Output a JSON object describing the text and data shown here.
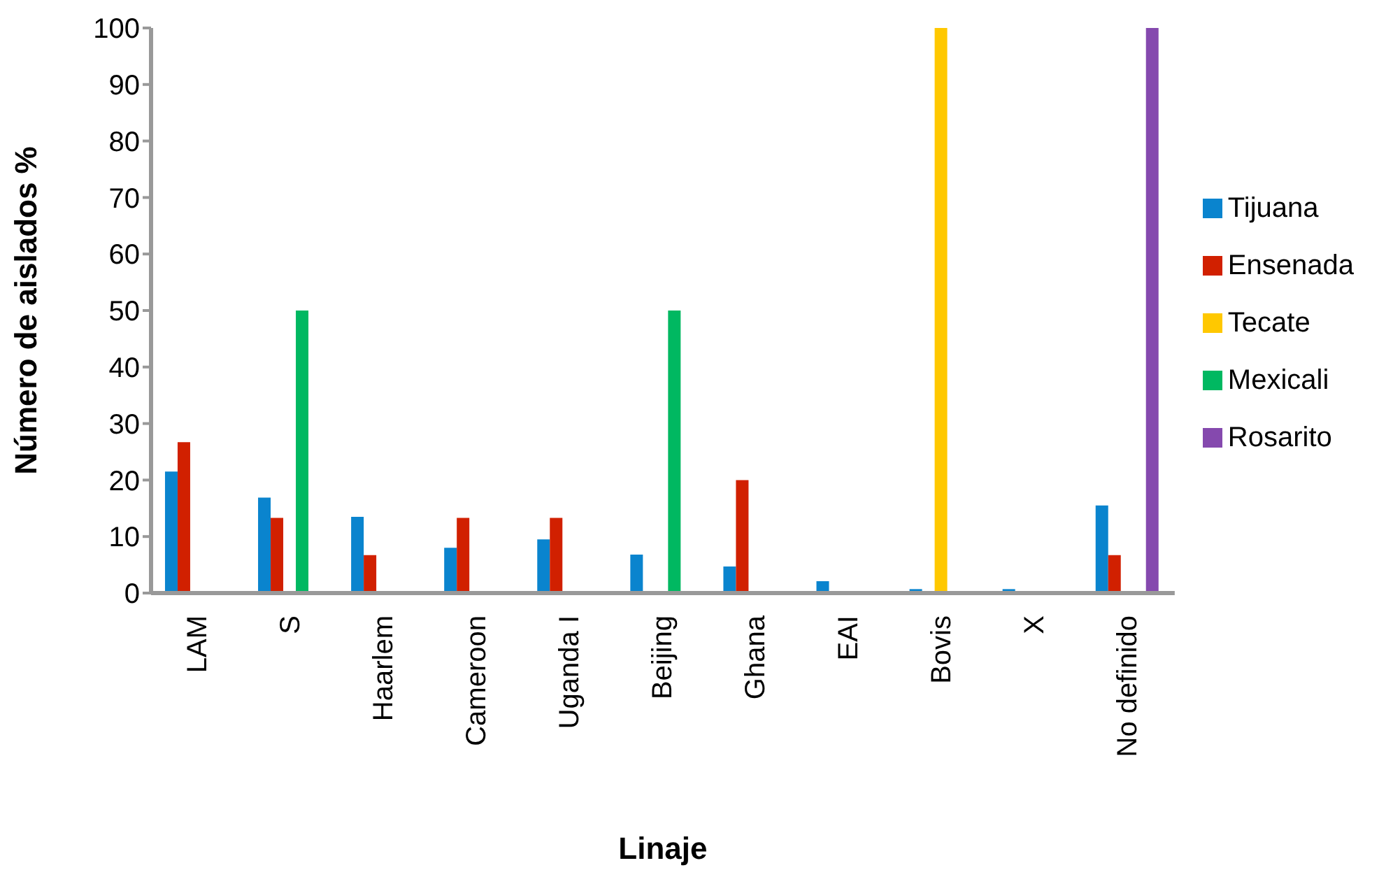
{
  "chart_data": {
    "type": "bar",
    "xlabel": "Linaje",
    "ylabel": "Número de aislados %",
    "categories": [
      "LAM",
      "S",
      "Haarlem",
      "Cameroon",
      "Uganda I",
      "Beijing",
      "Ghana",
      "EAI",
      "Bovis",
      "X",
      "No definido"
    ],
    "series": [
      {
        "name": "Tijuana",
        "color": "#0a84ce",
        "values": [
          21.5,
          16.9,
          13.5,
          8.0,
          9.5,
          6.8,
          4.7,
          2.1,
          0.7,
          0.7,
          15.5
        ]
      },
      {
        "name": "Ensenada",
        "color": "#d12000",
        "values": [
          26.7,
          13.3,
          6.7,
          13.3,
          13.3,
          0,
          20,
          0,
          0,
          0,
          6.7
        ]
      },
      {
        "name": "Tecate",
        "color": "#ffc800",
        "values": [
          0,
          0,
          0,
          0,
          0,
          0,
          0,
          0,
          100,
          0,
          0
        ]
      },
      {
        "name": "Mexicali",
        "color": "#00b861",
        "values": [
          0,
          50,
          0,
          0,
          0,
          50,
          0,
          0,
          0,
          0,
          0
        ]
      },
      {
        "name": "Rosarito",
        "color": "#8549ae",
        "values": [
          0,
          0,
          0,
          0,
          0,
          0,
          0,
          0,
          0,
          0,
          100
        ]
      }
    ],
    "ylim": [
      0,
      100
    ],
    "yticks": [
      0,
      10,
      20,
      30,
      40,
      50,
      60,
      70,
      80,
      90,
      100
    ],
    "grid": false,
    "legend": "right"
  }
}
